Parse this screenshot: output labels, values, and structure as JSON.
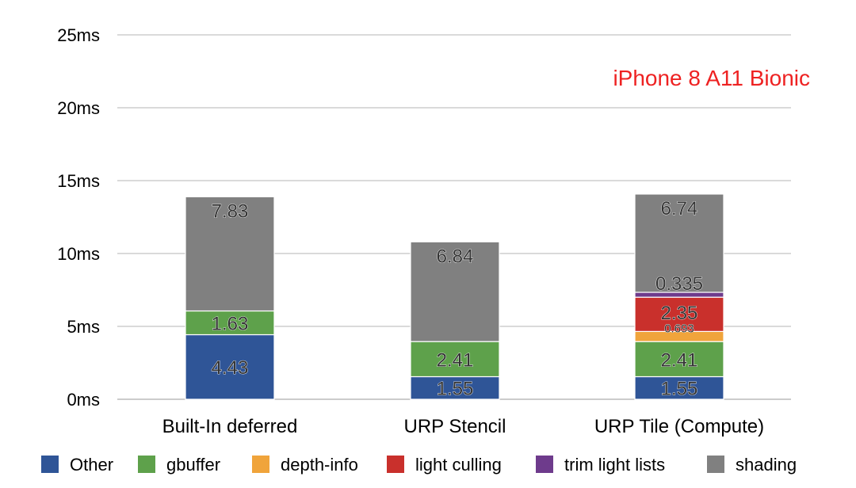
{
  "chart_data": {
    "type": "bar",
    "stacked": true,
    "annotation": "iPhone 8 A11 Bionic",
    "categories": [
      "Built-In deferred",
      "URP Stencil",
      "URP Tile (Compute)"
    ],
    "y_tick_labels": [
      "0ms",
      "5ms",
      "10ms",
      "15ms",
      "20ms",
      "25ms"
    ],
    "ylim": [
      0,
      25
    ],
    "grid": true,
    "legend_position": "bottom",
    "series": [
      {
        "name": "Other",
        "color": "#2f5597",
        "values": [
          4.43,
          1.55,
          1.55
        ],
        "labels": [
          "4.43",
          "1.55",
          "1.55"
        ]
      },
      {
        "name": "gbuffer",
        "color": "#5ea14b",
        "values": [
          1.63,
          2.41,
          2.41
        ],
        "labels": [
          "1.63",
          "2.41",
          "2.41"
        ]
      },
      {
        "name": "depth-info",
        "color": "#f0a43b",
        "values": [
          0,
          0,
          0.693
        ],
        "labels": [
          "",
          "",
          "0.693"
        ]
      },
      {
        "name": "light culling",
        "color": "#c9302c",
        "values": [
          0,
          0,
          2.35
        ],
        "labels": [
          "",
          "",
          "2.35"
        ]
      },
      {
        "name": "trim light lists",
        "color": "#6e3b8c",
        "values": [
          0,
          0,
          0.335
        ],
        "labels": [
          "",
          "",
          "0.335"
        ]
      },
      {
        "name": "shading",
        "color": "#808080",
        "values": [
          7.83,
          6.84,
          6.74
        ],
        "labels": [
          "7.83",
          "6.84",
          "6.74"
        ]
      }
    ]
  }
}
